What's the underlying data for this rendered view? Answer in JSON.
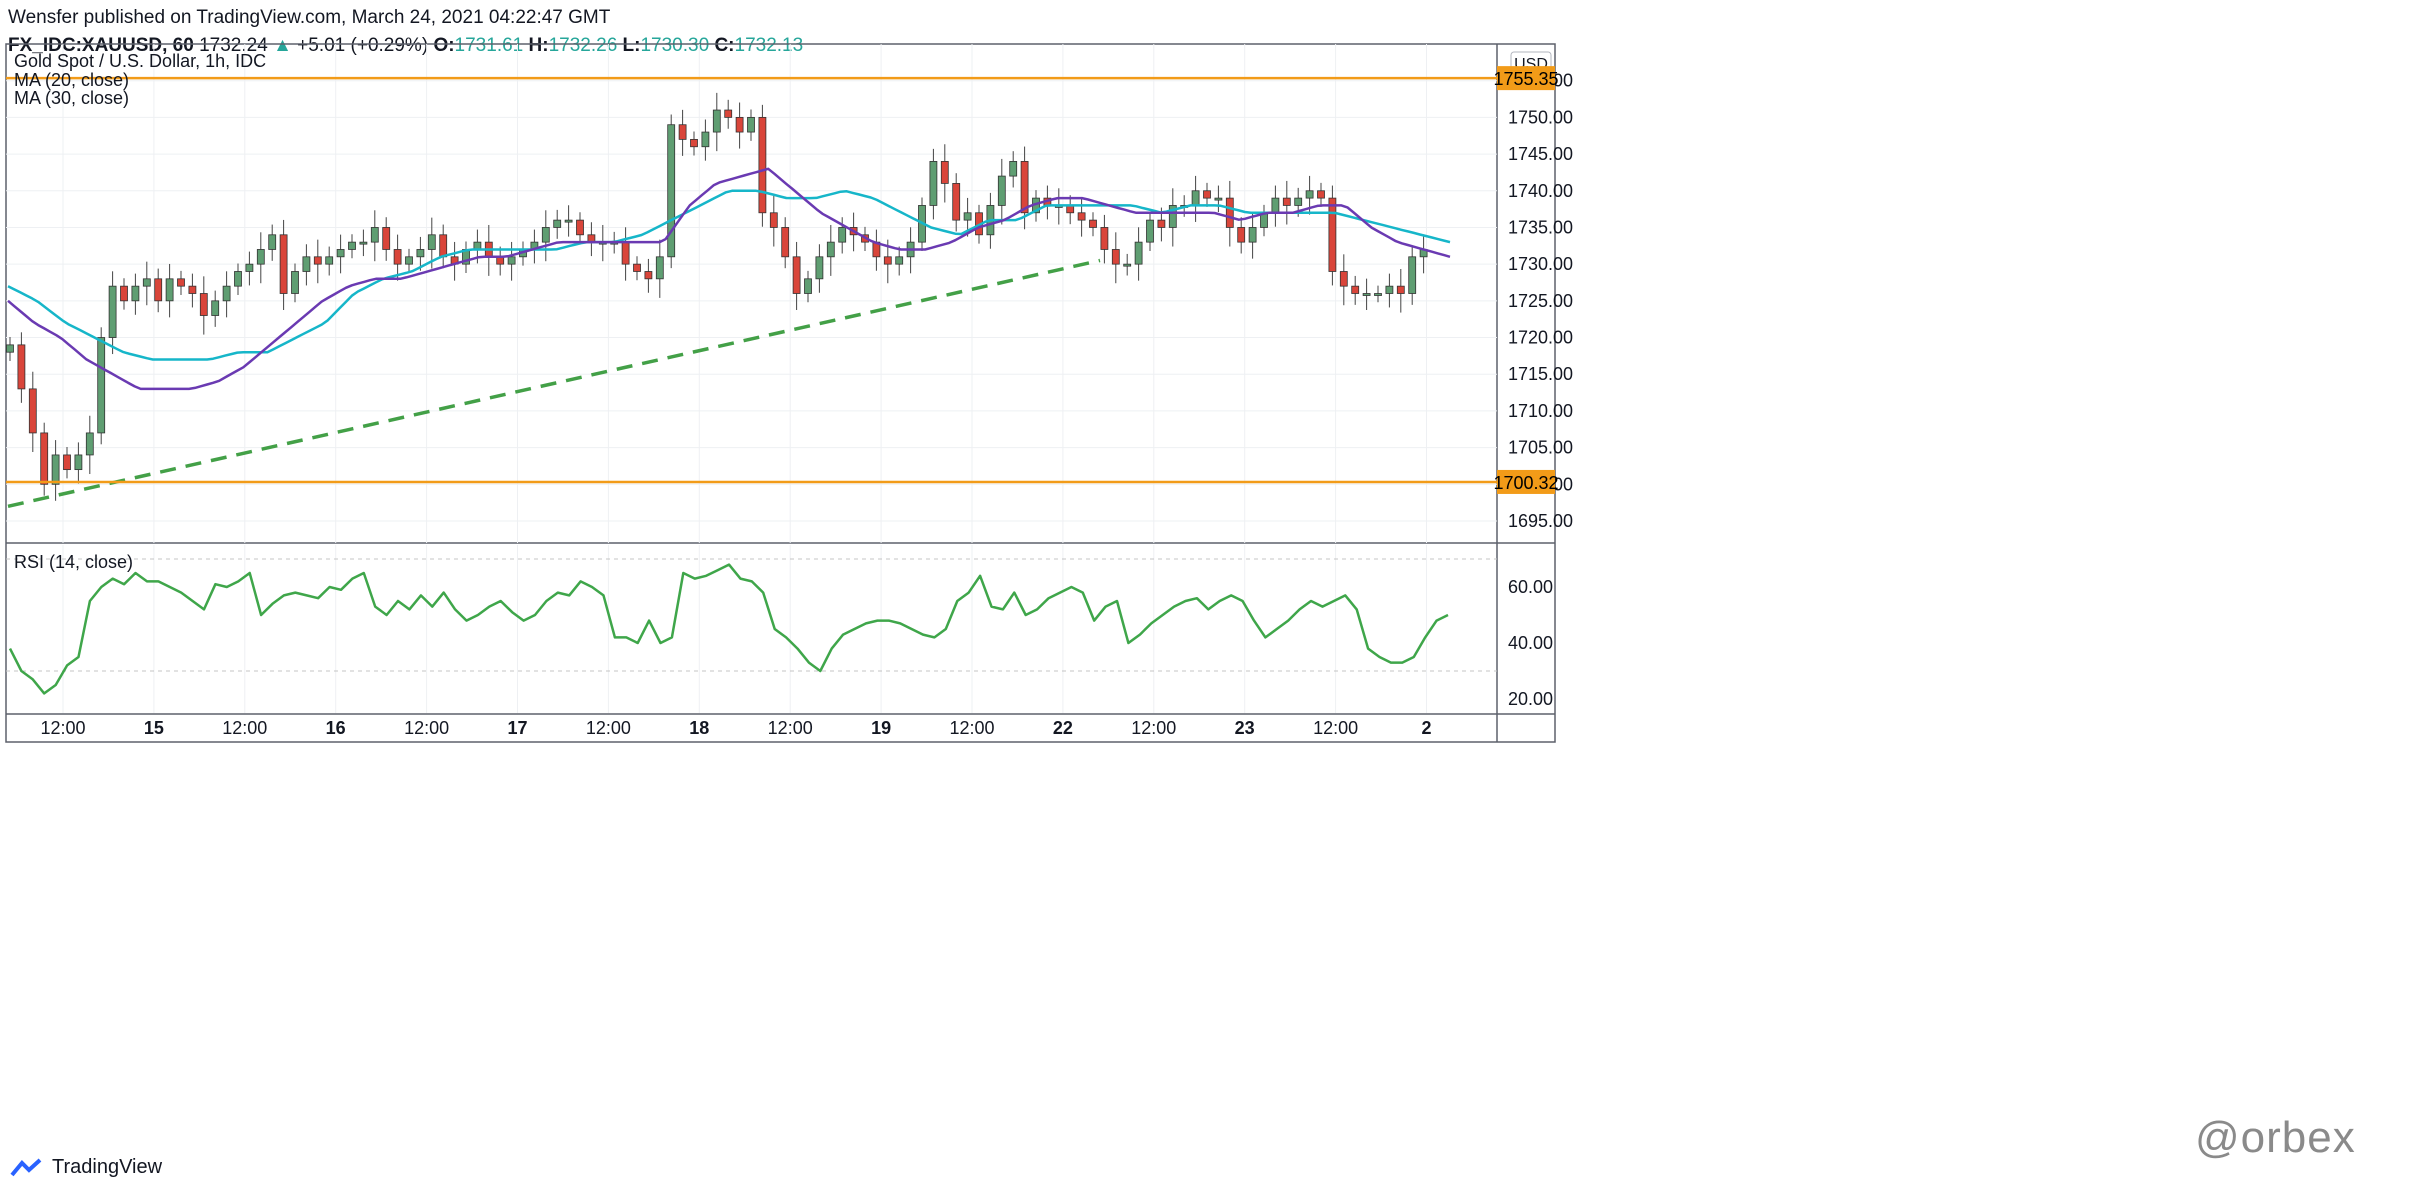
{
  "header": {
    "line1": "Wensfer published on TradingView.com, March 24, 2021 04:22:47 GMT",
    "symbol": "FX_IDC:XAUUSD, 60",
    "last": "1732.24",
    "change": "+5.01 (+0.29%)",
    "o_label": "O:",
    "o": "1731.61",
    "h_label": "H:",
    "h": "1732.26",
    "l_label": "L:",
    "l": "1730.30",
    "c_label": "C:",
    "c": "1732.13"
  },
  "footer": {
    "brand": "TradingView",
    "watermark": "@orbex"
  },
  "colors": {
    "up": "#5f9e72",
    "down": "#d9453a",
    "ma20": "#6a3ab2",
    "ma30": "#16b6c9",
    "rsi": "#3fa64a",
    "level": "#f29b18",
    "trend": "#43a047"
  },
  "chart_data": [
    {
      "type": "candlestick",
      "title": "Gold Spot / U.S. Dollar, 1h, IDC",
      "legend": [
        "MA (20, close)",
        "MA (30, close)"
      ],
      "currency_badge": "USD",
      "ylim": [
        1692,
        1760
      ],
      "y_ticks": [
        "1695.00",
        "1700.00",
        "1705.00",
        "1710.00",
        "1715.00",
        "1720.00",
        "1725.00",
        "1730.00",
        "1735.00",
        "1740.00",
        "1745.00",
        "1750.00",
        "1755.00"
      ],
      "x_ticks": [
        "12:00",
        "15",
        "12:00",
        "16",
        "12:00",
        "17",
        "12:00",
        "18",
        "12:00",
        "19",
        "12:00",
        "22",
        "12:00",
        "23",
        "12:00",
        "2"
      ],
      "levels": [
        {
          "value": 1755.35,
          "label": "1755.35"
        },
        {
          "value": 1700.32,
          "label": "1700.32"
        }
      ],
      "trendline": {
        "style": "dashed",
        "from": 1697,
        "to": 1730.5
      },
      "anchors": [
        1719,
        1713,
        1707,
        1700,
        1704,
        1702,
        1704,
        1707,
        1720,
        1727,
        1725,
        1727,
        1728,
        1725,
        1728,
        1727,
        1726,
        1723,
        1725,
        1727,
        1729,
        1730,
        1732,
        1734,
        1726,
        1729,
        1731,
        1730,
        1731,
        1732,
        1733,
        1733,
        1735,
        1732,
        1730,
        1731,
        1732,
        1734,
        1731,
        1730,
        1732,
        1733,
        1731,
        1730,
        1731,
        1732,
        1733,
        1735,
        1736,
        1736,
        1734,
        1733,
        1733,
        1733,
        1730,
        1729,
        1728,
        1731,
        1749,
        1747,
        1746,
        1748,
        1751,
        1750,
        1748,
        1750,
        1737,
        1735,
        1731,
        1726,
        1728,
        1731,
        1733,
        1735,
        1734,
        1733,
        1731,
        1730,
        1731,
        1733,
        1738,
        1744,
        1741,
        1736,
        1737,
        1734,
        1738,
        1742,
        1744,
        1737,
        1739,
        1738,
        1738,
        1737,
        1736,
        1735,
        1732,
        1730,
        1730,
        1733,
        1736,
        1735,
        1738,
        1738,
        1740,
        1739,
        1739,
        1735,
        1733,
        1735,
        1737,
        1739,
        1738,
        1739,
        1740,
        1739,
        1729,
        1727,
        1726,
        1726,
        1726,
        1727,
        1726,
        1731,
        1732
      ],
      "ma20_anchors": [
        1725,
        1722,
        1720,
        1717,
        1715,
        1713,
        1713,
        1713,
        1714,
        1716,
        1719,
        1722,
        1725,
        1727,
        1728,
        1728,
        1729,
        1730,
        1731,
        1731,
        1732,
        1733,
        1733,
        1733,
        1733,
        1733,
        1738,
        1741,
        1742,
        1743,
        1740,
        1737,
        1735,
        1733,
        1732,
        1732,
        1733,
        1735,
        1736,
        1738,
        1739,
        1739,
        1738,
        1737,
        1737,
        1737,
        1737,
        1736,
        1737,
        1737,
        1738,
        1738,
        1735,
        1733,
        1732,
        1731
      ],
      "ma30_anchors": [
        1727,
        1725,
        1722,
        1720,
        1718,
        1717,
        1717,
        1717,
        1718,
        1718,
        1720,
        1722,
        1726,
        1728,
        1729,
        1731,
        1732,
        1732,
        1732,
        1732,
        1733,
        1733,
        1734,
        1736,
        1738,
        1740,
        1740,
        1739,
        1739,
        1740,
        1739,
        1737,
        1735,
        1734,
        1736,
        1736,
        1738,
        1738,
        1738,
        1738,
        1737,
        1738,
        1738,
        1737,
        1737,
        1737,
        1737,
        1736,
        1735,
        1734,
        1733
      ]
    },
    {
      "type": "line",
      "title": "RSI (14, close)",
      "ylim": [
        15,
        75
      ],
      "y_ticks": [
        "20.00",
        "40.00",
        "60.00"
      ],
      "values": [
        38,
        30,
        27,
        22,
        25,
        32,
        35,
        55,
        60,
        63,
        61,
        65,
        62,
        62,
        60,
        58,
        55,
        52,
        61,
        60,
        62,
        65,
        50,
        54,
        57,
        58,
        57,
        56,
        60,
        59,
        63,
        65,
        53,
        50,
        55,
        52,
        57,
        53,
        58,
        52,
        48,
        50,
        53,
        55,
        51,
        48,
        50,
        55,
        58,
        57,
        62,
        60,
        57,
        42,
        42,
        40,
        48,
        40,
        42,
        65,
        63,
        64,
        66,
        68,
        63,
        62,
        58,
        45,
        42,
        38,
        33,
        30,
        38,
        43,
        45,
        47,
        48,
        48,
        47,
        45,
        43,
        42,
        45,
        55,
        58,
        64,
        53,
        52,
        58,
        50,
        52,
        56,
        58,
        60,
        58,
        48,
        53,
        55,
        40,
        43,
        47,
        50,
        53,
        55,
        56,
        52,
        55,
        57,
        55,
        48,
        42,
        45,
        48,
        52,
        55,
        53,
        55,
        57,
        52,
        38,
        35,
        33,
        33,
        35,
        42,
        48,
        50
      ]
    }
  ]
}
